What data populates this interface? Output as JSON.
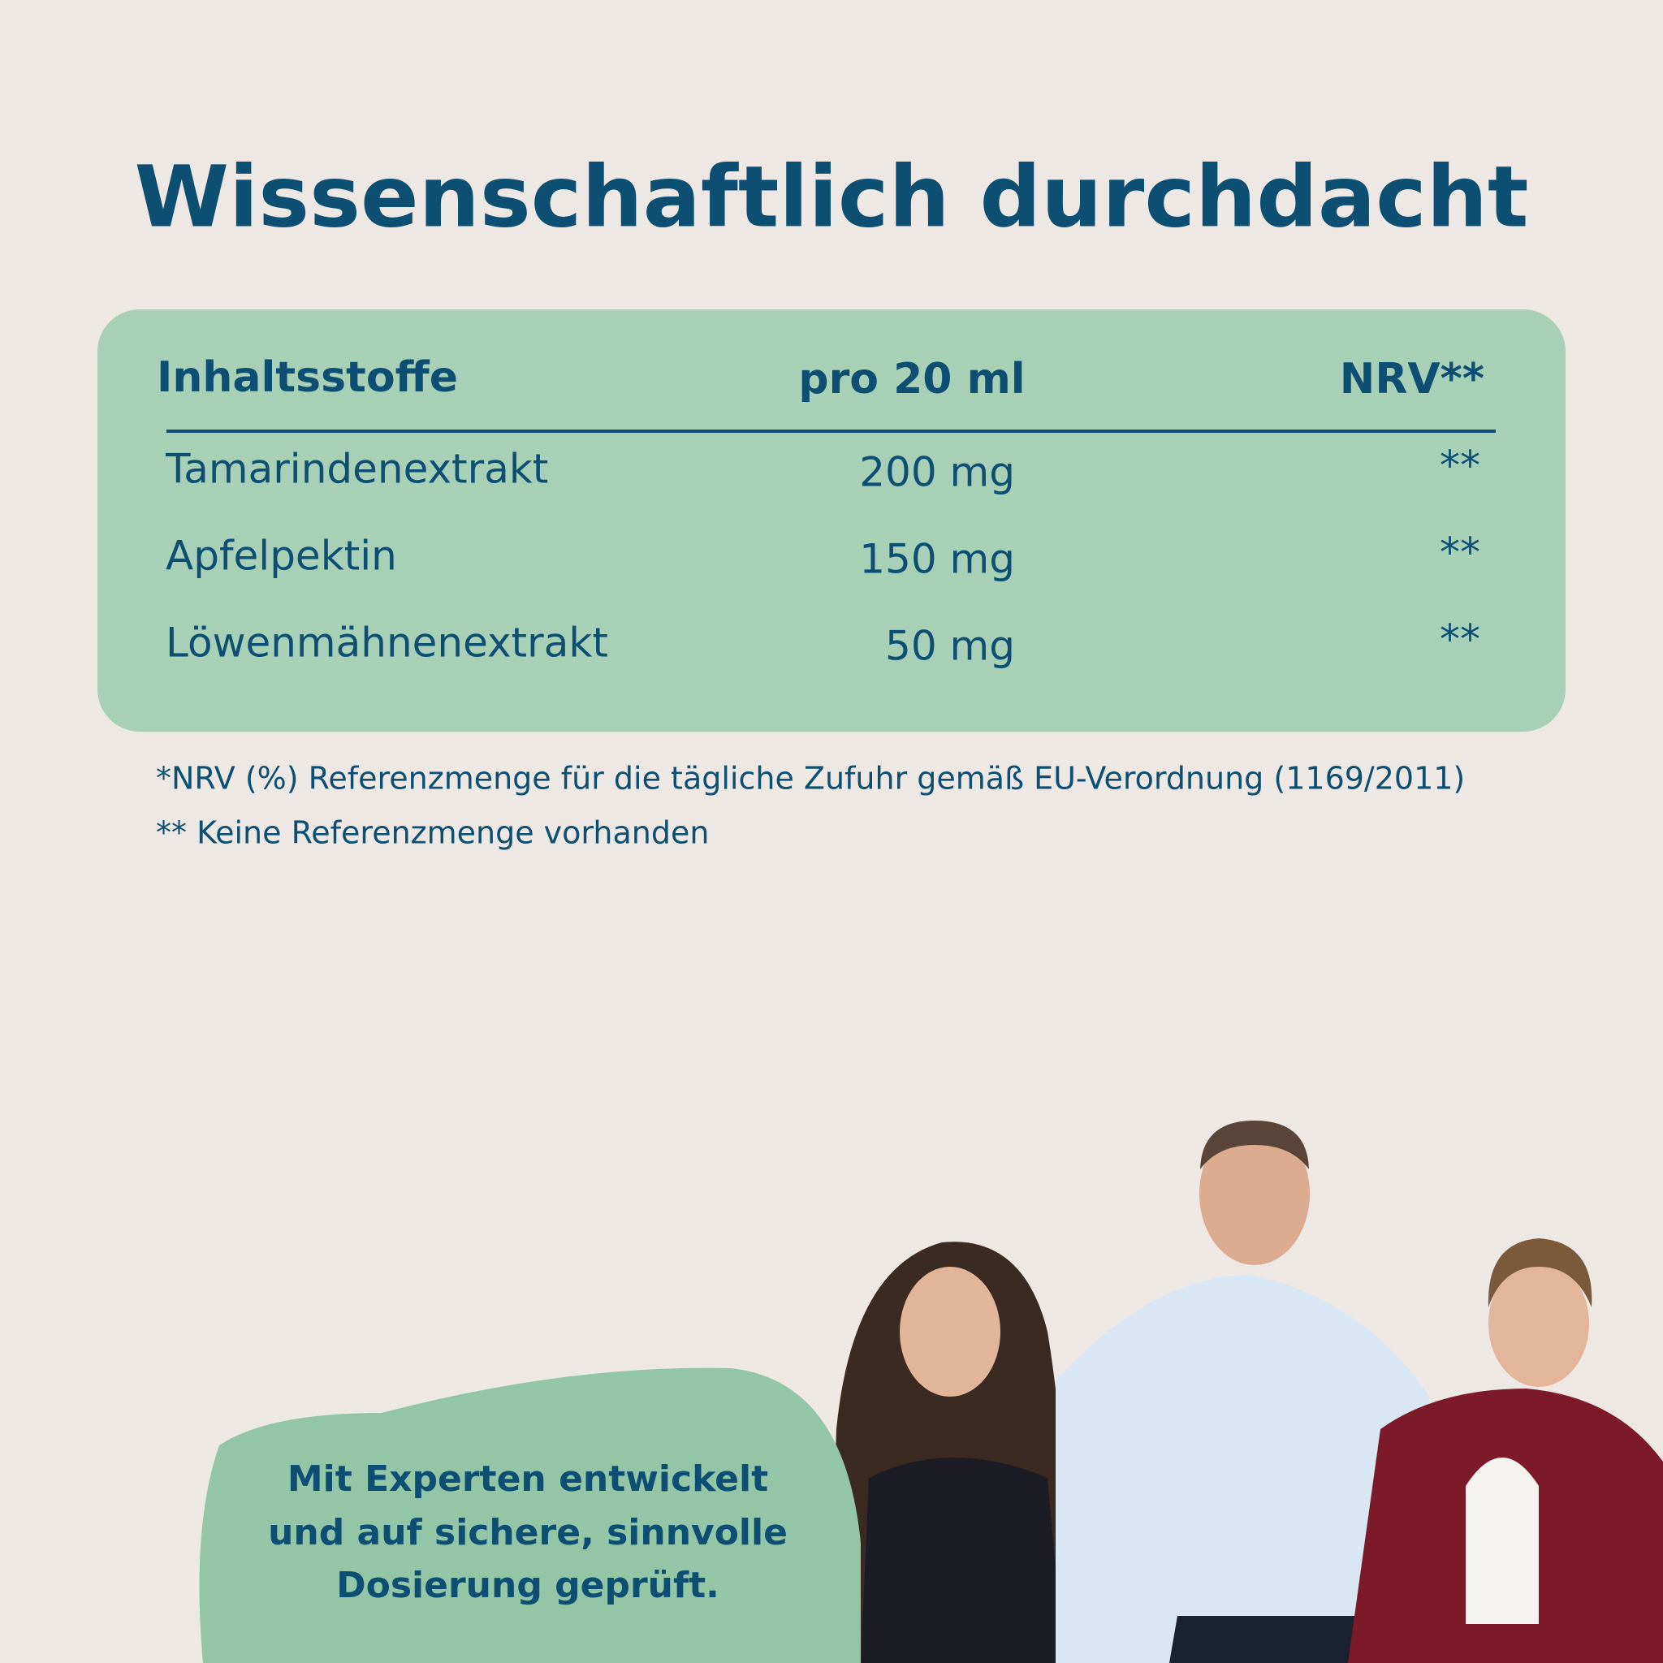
{
  "title": "Wissenschaftlich durchdacht",
  "table": {
    "header": [
      "Inhaltsstoffe",
      "pro 20 ml",
      "NRV**"
    ],
    "rows": [
      [
        "Tamarindenextrakt",
        "200 mg",
        "**"
      ],
      [
        "Apfelpektin",
        "150 mg",
        "**"
      ],
      [
        "Löwenmähnenextrakt",
        "50 mg",
        "**"
      ]
    ]
  },
  "footnotes": [
    "*NRV (%) Referenzmenge für die tägliche Zufuhr gemäß EU-Verordnung (1169/2011)",
    "** Keine Referenzmenge vorhanden"
  ],
  "callout": [
    "Mit Experten entwickelt",
    "und auf sichere, sinnvolle",
    "Dosierung geprüft."
  ]
}
